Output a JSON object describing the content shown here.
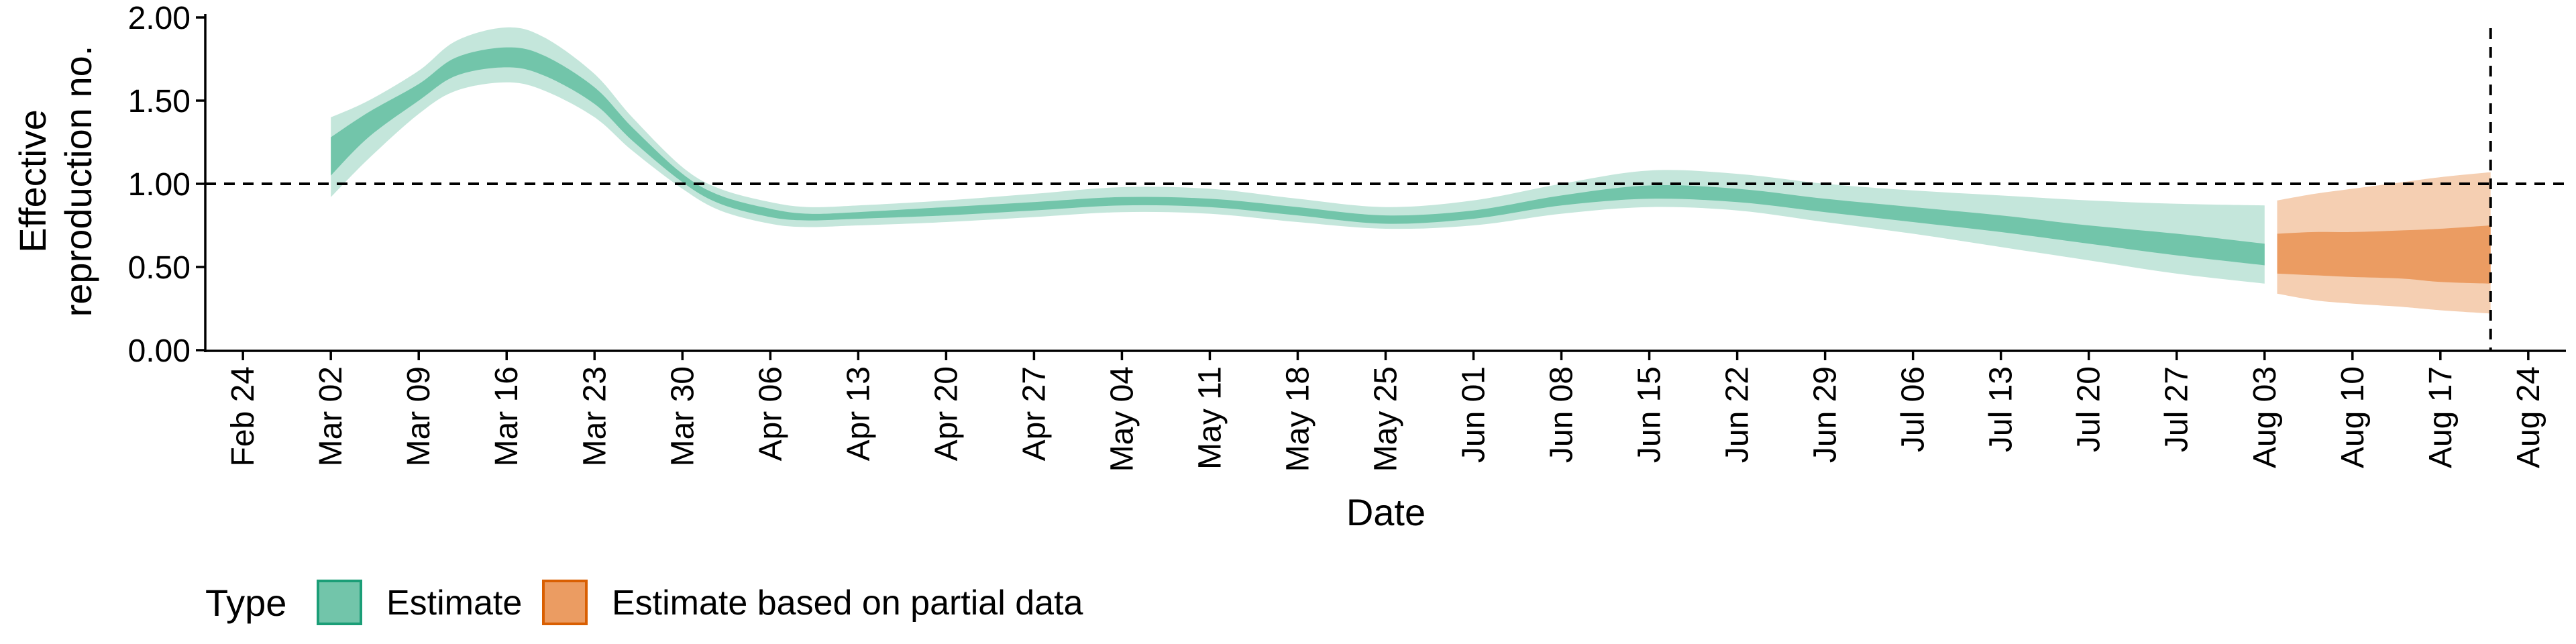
{
  "chart_data": {
    "type": "area",
    "xlabel": "Date",
    "ylabel_lines": [
      "Effective",
      "reproduction no."
    ],
    "ylim": [
      0,
      2.0
    ],
    "y_ticks": [
      {
        "value": 0,
        "label": "0.00"
      },
      {
        "value": 0.5,
        "label": "0.50"
      },
      {
        "value": 1.0,
        "label": "1.00"
      },
      {
        "value": 1.5,
        "label": "1.50"
      },
      {
        "value": 2.0,
        "label": "2.00"
      }
    ],
    "x_range": [
      "2020-02-21",
      "2020-08-27"
    ],
    "x_ticks": [
      {
        "date": "2020-02-24",
        "label": "Feb 24"
      },
      {
        "date": "2020-03-02",
        "label": "Mar 02"
      },
      {
        "date": "2020-03-09",
        "label": "Mar 09"
      },
      {
        "date": "2020-03-16",
        "label": "Mar 16"
      },
      {
        "date": "2020-03-23",
        "label": "Mar 23"
      },
      {
        "date": "2020-03-30",
        "label": "Mar 30"
      },
      {
        "date": "2020-04-06",
        "label": "Apr 06"
      },
      {
        "date": "2020-04-13",
        "label": "Apr 13"
      },
      {
        "date": "2020-04-20",
        "label": "Apr 20"
      },
      {
        "date": "2020-04-27",
        "label": "Apr 27"
      },
      {
        "date": "2020-05-04",
        "label": "May 04"
      },
      {
        "date": "2020-05-11",
        "label": "May 11"
      },
      {
        "date": "2020-05-18",
        "label": "May 18"
      },
      {
        "date": "2020-05-25",
        "label": "May 25"
      },
      {
        "date": "2020-06-01",
        "label": "Jun 01"
      },
      {
        "date": "2020-06-08",
        "label": "Jun 08"
      },
      {
        "date": "2020-06-15",
        "label": "Jun 15"
      },
      {
        "date": "2020-06-22",
        "label": "Jun 22"
      },
      {
        "date": "2020-06-29",
        "label": "Jun 29"
      },
      {
        "date": "2020-07-06",
        "label": "Jul 06"
      },
      {
        "date": "2020-07-13",
        "label": "Jul 13"
      },
      {
        "date": "2020-07-20",
        "label": "Jul 20"
      },
      {
        "date": "2020-07-27",
        "label": "Jul 27"
      },
      {
        "date": "2020-08-03",
        "label": "Aug 03"
      },
      {
        "date": "2020-08-10",
        "label": "Aug 10"
      },
      {
        "date": "2020-08-17",
        "label": "Aug 17"
      },
      {
        "date": "2020-08-24",
        "label": "Aug 24"
      }
    ],
    "reference_hline": 1.0,
    "reference_vline": "2020-08-21",
    "grid": false,
    "legend": {
      "title": "Type",
      "position": "bottom-left",
      "items": [
        {
          "label": "Estimate",
          "fill": "#72c5aa",
          "stroke": "#1b9e77"
        },
        {
          "label": "Estimate based on partial data",
          "fill": "#eb9c62",
          "stroke": "#d95f02"
        }
      ]
    },
    "series": [
      {
        "name": "Estimate",
        "colors": {
          "outer": "#c4e6db",
          "inner": "#72c5aa"
        },
        "points": [
          {
            "date": "2020-03-02",
            "lo90": 0.92,
            "lo50": 1.05,
            "hi50": 1.28,
            "hi90": 1.4
          },
          {
            "date": "2020-03-05",
            "lo90": 1.15,
            "lo50": 1.28,
            "hi50": 1.43,
            "hi90": 1.5
          },
          {
            "date": "2020-03-09",
            "lo90": 1.42,
            "lo50": 1.5,
            "hi50": 1.6,
            "hi90": 1.68
          },
          {
            "date": "2020-03-12",
            "lo90": 1.56,
            "lo50": 1.65,
            "hi50": 1.76,
            "hi90": 1.86
          },
          {
            "date": "2020-03-16",
            "lo90": 1.61,
            "lo50": 1.7,
            "hi50": 1.82,
            "hi90": 1.94
          },
          {
            "date": "2020-03-19",
            "lo90": 1.56,
            "lo50": 1.65,
            "hi50": 1.77,
            "hi90": 1.88
          },
          {
            "date": "2020-03-23",
            "lo90": 1.4,
            "lo50": 1.48,
            "hi50": 1.58,
            "hi90": 1.66
          },
          {
            "date": "2020-03-26",
            "lo90": 1.2,
            "lo50": 1.26,
            "hi50": 1.34,
            "hi90": 1.4
          },
          {
            "date": "2020-03-30",
            "lo90": 0.97,
            "lo50": 1.01,
            "hi50": 1.06,
            "hi90": 1.1
          },
          {
            "date": "2020-04-02",
            "lo90": 0.84,
            "lo50": 0.88,
            "hi50": 0.93,
            "hi90": 0.97
          },
          {
            "date": "2020-04-06",
            "lo90": 0.76,
            "lo50": 0.8,
            "hi50": 0.85,
            "hi90": 0.89
          },
          {
            "date": "2020-04-09",
            "lo90": 0.74,
            "lo50": 0.78,
            "hi50": 0.82,
            "hi90": 0.86
          },
          {
            "date": "2020-04-13",
            "lo90": 0.75,
            "lo50": 0.79,
            "hi50": 0.83,
            "hi90": 0.87
          },
          {
            "date": "2020-04-20",
            "lo90": 0.77,
            "lo50": 0.81,
            "hi50": 0.86,
            "hi90": 0.9
          },
          {
            "date": "2020-04-27",
            "lo90": 0.8,
            "lo50": 0.84,
            "hi50": 0.89,
            "hi90": 0.94
          },
          {
            "date": "2020-05-04",
            "lo90": 0.83,
            "lo50": 0.87,
            "hi50": 0.92,
            "hi90": 0.98
          },
          {
            "date": "2020-05-11",
            "lo90": 0.82,
            "lo50": 0.86,
            "hi50": 0.91,
            "hi90": 0.97
          },
          {
            "date": "2020-05-18",
            "lo90": 0.77,
            "lo50": 0.81,
            "hi50": 0.86,
            "hi90": 0.91
          },
          {
            "date": "2020-05-25",
            "lo90": 0.73,
            "lo50": 0.76,
            "hi50": 0.81,
            "hi90": 0.86
          },
          {
            "date": "2020-06-01",
            "lo90": 0.75,
            "lo50": 0.79,
            "hi50": 0.84,
            "hi90": 0.9
          },
          {
            "date": "2020-06-08",
            "lo90": 0.82,
            "lo50": 0.87,
            "hi50": 0.93,
            "hi90": 1.0
          },
          {
            "date": "2020-06-15",
            "lo90": 0.86,
            "lo50": 0.91,
            "hi50": 0.99,
            "hi90": 1.08
          },
          {
            "date": "2020-06-22",
            "lo90": 0.84,
            "lo50": 0.89,
            "hi50": 0.97,
            "hi90": 1.06
          },
          {
            "date": "2020-06-29",
            "lo90": 0.77,
            "lo50": 0.83,
            "hi50": 0.91,
            "hi90": 1.0
          },
          {
            "date": "2020-07-06",
            "lo90": 0.7,
            "lo50": 0.77,
            "hi50": 0.86,
            "hi90": 0.96
          },
          {
            "date": "2020-07-13",
            "lo90": 0.62,
            "lo50": 0.71,
            "hi50": 0.81,
            "hi90": 0.93
          },
          {
            "date": "2020-07-20",
            "lo90": 0.54,
            "lo50": 0.64,
            "hi50": 0.75,
            "hi90": 0.9
          },
          {
            "date": "2020-07-27",
            "lo90": 0.46,
            "lo50": 0.57,
            "hi50": 0.7,
            "hi90": 0.88
          },
          {
            "date": "2020-08-03",
            "lo90": 0.4,
            "lo50": 0.51,
            "hi50": 0.64,
            "hi90": 0.87
          }
        ]
      },
      {
        "name": "Estimate based on partial data",
        "colors": {
          "outer": "#f5cfb2",
          "inner": "#eb9c62"
        },
        "points": [
          {
            "date": "2020-08-04",
            "lo90": 0.34,
            "lo50": 0.46,
            "hi50": 0.7,
            "hi90": 0.9
          },
          {
            "date": "2020-08-07",
            "lo90": 0.3,
            "lo50": 0.45,
            "hi50": 0.71,
            "hi90": 0.94
          },
          {
            "date": "2020-08-10",
            "lo90": 0.28,
            "lo50": 0.44,
            "hi50": 0.71,
            "hi90": 0.97
          },
          {
            "date": "2020-08-14",
            "lo90": 0.26,
            "lo50": 0.43,
            "hi50": 0.72,
            "hi90": 1.01
          },
          {
            "date": "2020-08-17",
            "lo90": 0.24,
            "lo50": 0.41,
            "hi50": 0.73,
            "hi90": 1.04
          },
          {
            "date": "2020-08-21",
            "lo90": 0.22,
            "lo50": 0.4,
            "hi50": 0.75,
            "hi90": 1.07
          }
        ]
      }
    ]
  }
}
